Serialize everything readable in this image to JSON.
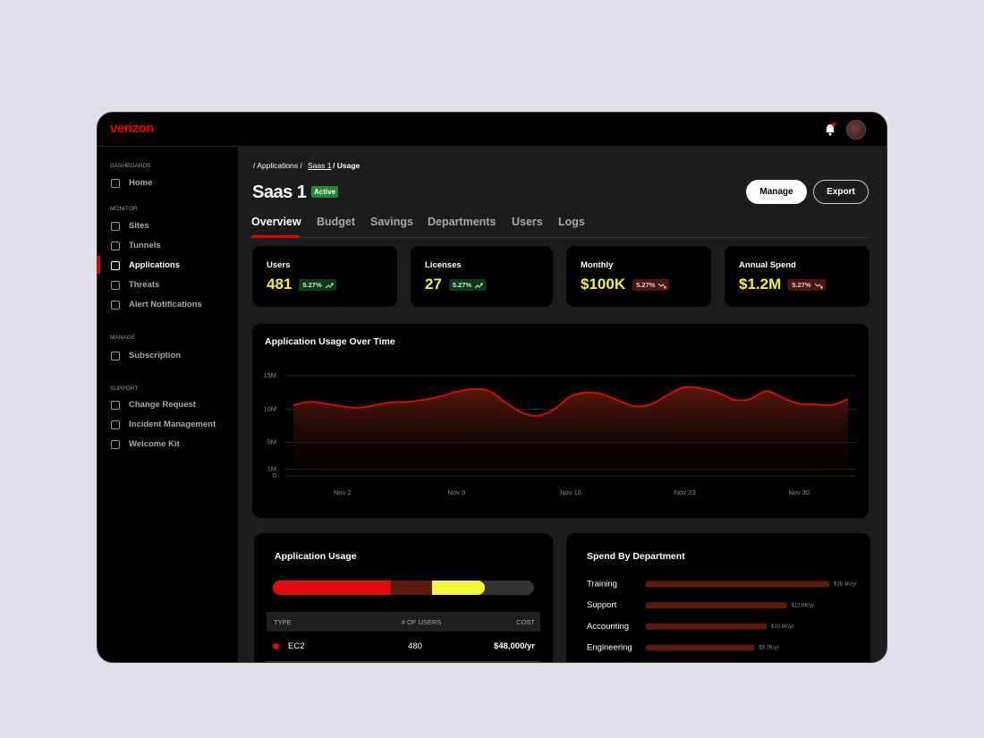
{
  "brand": "verizon",
  "sidebar": {
    "sections": [
      {
        "heading": "DASHBOARDS",
        "items": [
          "Home"
        ]
      },
      {
        "heading": "MONITOR",
        "items": [
          "Sites",
          "Tunnels",
          "Applications",
          "Threats",
          "Alert Notifications"
        ]
      },
      {
        "heading": "MANAGE",
        "items": [
          "Subscription"
        ]
      },
      {
        "heading": "SUPPORT",
        "items": [
          "Change Request",
          "Incident Management",
          "Welcome Kit"
        ]
      }
    ],
    "active": "Applications"
  },
  "breadcrumb": [
    "/ Applications /",
    "Saas 1",
    "/ Usage"
  ],
  "header": {
    "title": "Saas 1",
    "status": "Active",
    "buttons": [
      "Manage",
      "Export"
    ]
  },
  "tabs": [
    "Overview",
    "Budget",
    "Savings",
    "Departments",
    "Users",
    "Logs"
  ],
  "kpis": [
    {
      "label": "Users",
      "value": "481",
      "change": "5.27%",
      "trend": "up"
    },
    {
      "label": "Licenses",
      "value": "27",
      "change": "5.27%",
      "trend": "up"
    },
    {
      "label": "Monthly",
      "value": "$100K",
      "change": "5.27%",
      "trend": "down"
    },
    {
      "label": "Annual Spend",
      "value": "$1.2M",
      "change": "5.27%",
      "trend": "down"
    }
  ],
  "usage": {
    "title": "Application Usage",
    "table": {
      "header": [
        "TYPE",
        "# OF USERS",
        "COST"
      ],
      "rows": [
        [
          "EC2",
          "480",
          "$48,000/yr"
        ]
      ]
    }
  },
  "chart_data": [
    {
      "type": "area",
      "title": "Application Usage Over Time",
      "categories": [
        null,
        null,
        null,
        "Nov 2",
        null,
        null,
        null,
        null,
        null,
        null,
        "Nov 9",
        null,
        null,
        null,
        null,
        null,
        null,
        "Nov 16",
        null,
        null,
        null,
        null,
        null,
        null,
        "Nov 23",
        null,
        null,
        null,
        null,
        null,
        null,
        "Nov 30",
        null,
        null,
        null
      ],
      "values": [
        10600000,
        11100000,
        10800000,
        10400000,
        10200000,
        10600000,
        11000000,
        11100000,
        11400000,
        11900000,
        12600000,
        13000000,
        12700000,
        11000000,
        9500000,
        9000000,
        10000000,
        11900000,
        12500000,
        12200000,
        11200000,
        10400000,
        10800000,
        12200000,
        13300000,
        13100000,
        12500000,
        11400000,
        11500000,
        12700000,
        11700000,
        10800000,
        10700000,
        10600000,
        11500000
      ],
      "color": "#e00b0b",
      "ylim": [
        0,
        15000000
      ],
      "yticks": [
        0,
        {
          "value": 1000000,
          "label": "1M"
        },
        {
          "value": 5000000,
          "label": "5M"
        },
        {
          "value": 10000000,
          "label": "10M"
        },
        {
          "value": 15000000,
          "label": "15M"
        }
      ],
      "grid": true
    },
    {
      "type": "hbar",
      "title": "Spend By Department",
      "categories": [
        "Training",
        "Support",
        "Accounting",
        "Engineering"
      ],
      "values": [
        16400,
        12600,
        10800,
        9700
      ],
      "value_labels": [
        "$16.4K/yr",
        "$12.6K/yr",
        "$10.8K/yr",
        "$9.7K/yr"
      ],
      "color": "#5c1a0c"
    }
  ]
}
